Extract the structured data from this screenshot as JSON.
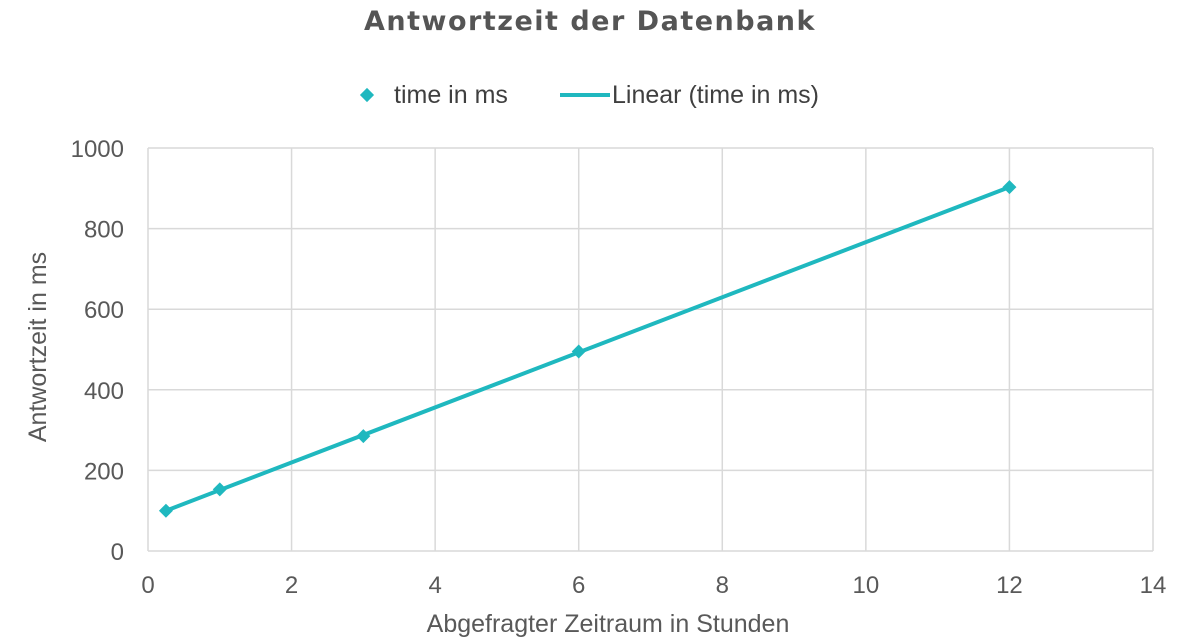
{
  "colors": {
    "series": "#1fb8bf",
    "grid": "#d9d9d9",
    "text": "#595959"
  },
  "legend": {
    "marker_label": "time in ms",
    "line_label": "Linear  (time in ms)"
  },
  "chart_data": {
    "type": "scatter",
    "title": "Antwortzeit der Datenbank",
    "xlabel": "Abgefragter Zeitraum in Stunden",
    "ylabel": "Antwortzeit in ms",
    "xlim": [
      0,
      14
    ],
    "ylim": [
      0,
      1000
    ],
    "xticks": [
      0,
      2,
      4,
      6,
      8,
      10,
      12,
      14
    ],
    "yticks": [
      0,
      200,
      400,
      600,
      800,
      1000
    ],
    "grid": true,
    "legend_position": "top",
    "series": [
      {
        "name": "time in ms",
        "marker": "diamond",
        "x": [
          0.25,
          1,
          3,
          6,
          12
        ],
        "y": [
          100,
          153,
          285,
          495,
          903
        ]
      }
    ],
    "trendline": {
      "name": "Linear  (time in ms)",
      "type": "linear",
      "x": [
        0.25,
        12
      ],
      "y": [
        100,
        903
      ]
    }
  }
}
